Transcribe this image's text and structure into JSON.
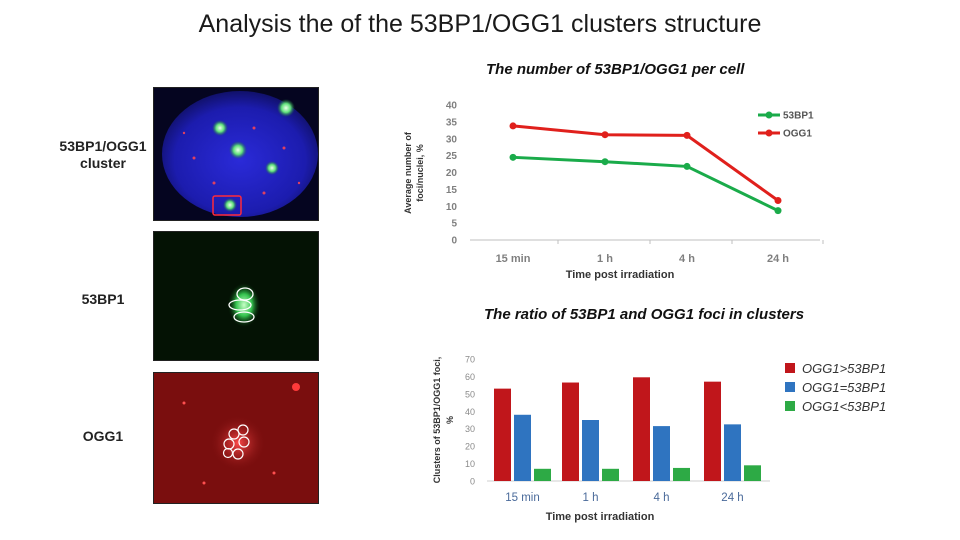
{
  "slide": {
    "title": "Analysis the of the 53BP1/OGG1 clusters structure"
  },
  "micrographs": {
    "cluster_label_line1": "53BP1/OGG1",
    "cluster_label_line2": "cluster",
    "green_label": "53BP1",
    "red_label": "OGG1"
  },
  "chart_data": [
    {
      "type": "line",
      "title": "The number of 53BP1/OGG1 per cell",
      "categories": [
        "15 min",
        "1 h",
        "4 h",
        "24 h"
      ],
      "series": [
        {
          "name": "53BP1",
          "color": "#1aab4a",
          "values": [
            24.5,
            23.2,
            21.8,
            8.7
          ]
        },
        {
          "name": "OGG1",
          "color": "#e0201c",
          "values": [
            33.8,
            31.2,
            31.0,
            11.7
          ]
        }
      ],
      "ylabel_line1": "Average number of",
      "ylabel_line2": "foci/nuclei, %",
      "xlabel": "Time post irradiation",
      "yticks": [
        "0",
        "5",
        "10",
        "15",
        "20",
        "25",
        "30",
        "35",
        "40"
      ],
      "ylim": [
        0,
        40
      ],
      "grid": false,
      "legend": "top-right"
    },
    {
      "type": "bar",
      "title": "The ratio of 53BP1 and OGG1 foci in clusters",
      "categories": [
        "15 min",
        "1 h",
        "4 h",
        "24 h"
      ],
      "series": [
        {
          "name": "OGG1>53BP1",
          "color": "#c0161b",
          "values": [
            53,
            56.5,
            59.5,
            57
          ]
        },
        {
          "name": "OGG1=53BP1",
          "color": "#2f74c0",
          "values": [
            38,
            35,
            31.5,
            32.5
          ]
        },
        {
          "name": "OGG1<53BP1",
          "color": "#2daa45",
          "values": [
            7,
            7,
            7.5,
            9
          ]
        }
      ],
      "ylabel_line1": "Clusters of 53BP1/OGG1 foci,",
      "ylabel_line2": "%",
      "xlabel": "Time post irradiation",
      "yticks": [
        "0",
        "10",
        "20",
        "30",
        "40",
        "50",
        "60",
        "70"
      ],
      "ylim": [
        0,
        70
      ],
      "grid": false,
      "legend": "right"
    }
  ]
}
